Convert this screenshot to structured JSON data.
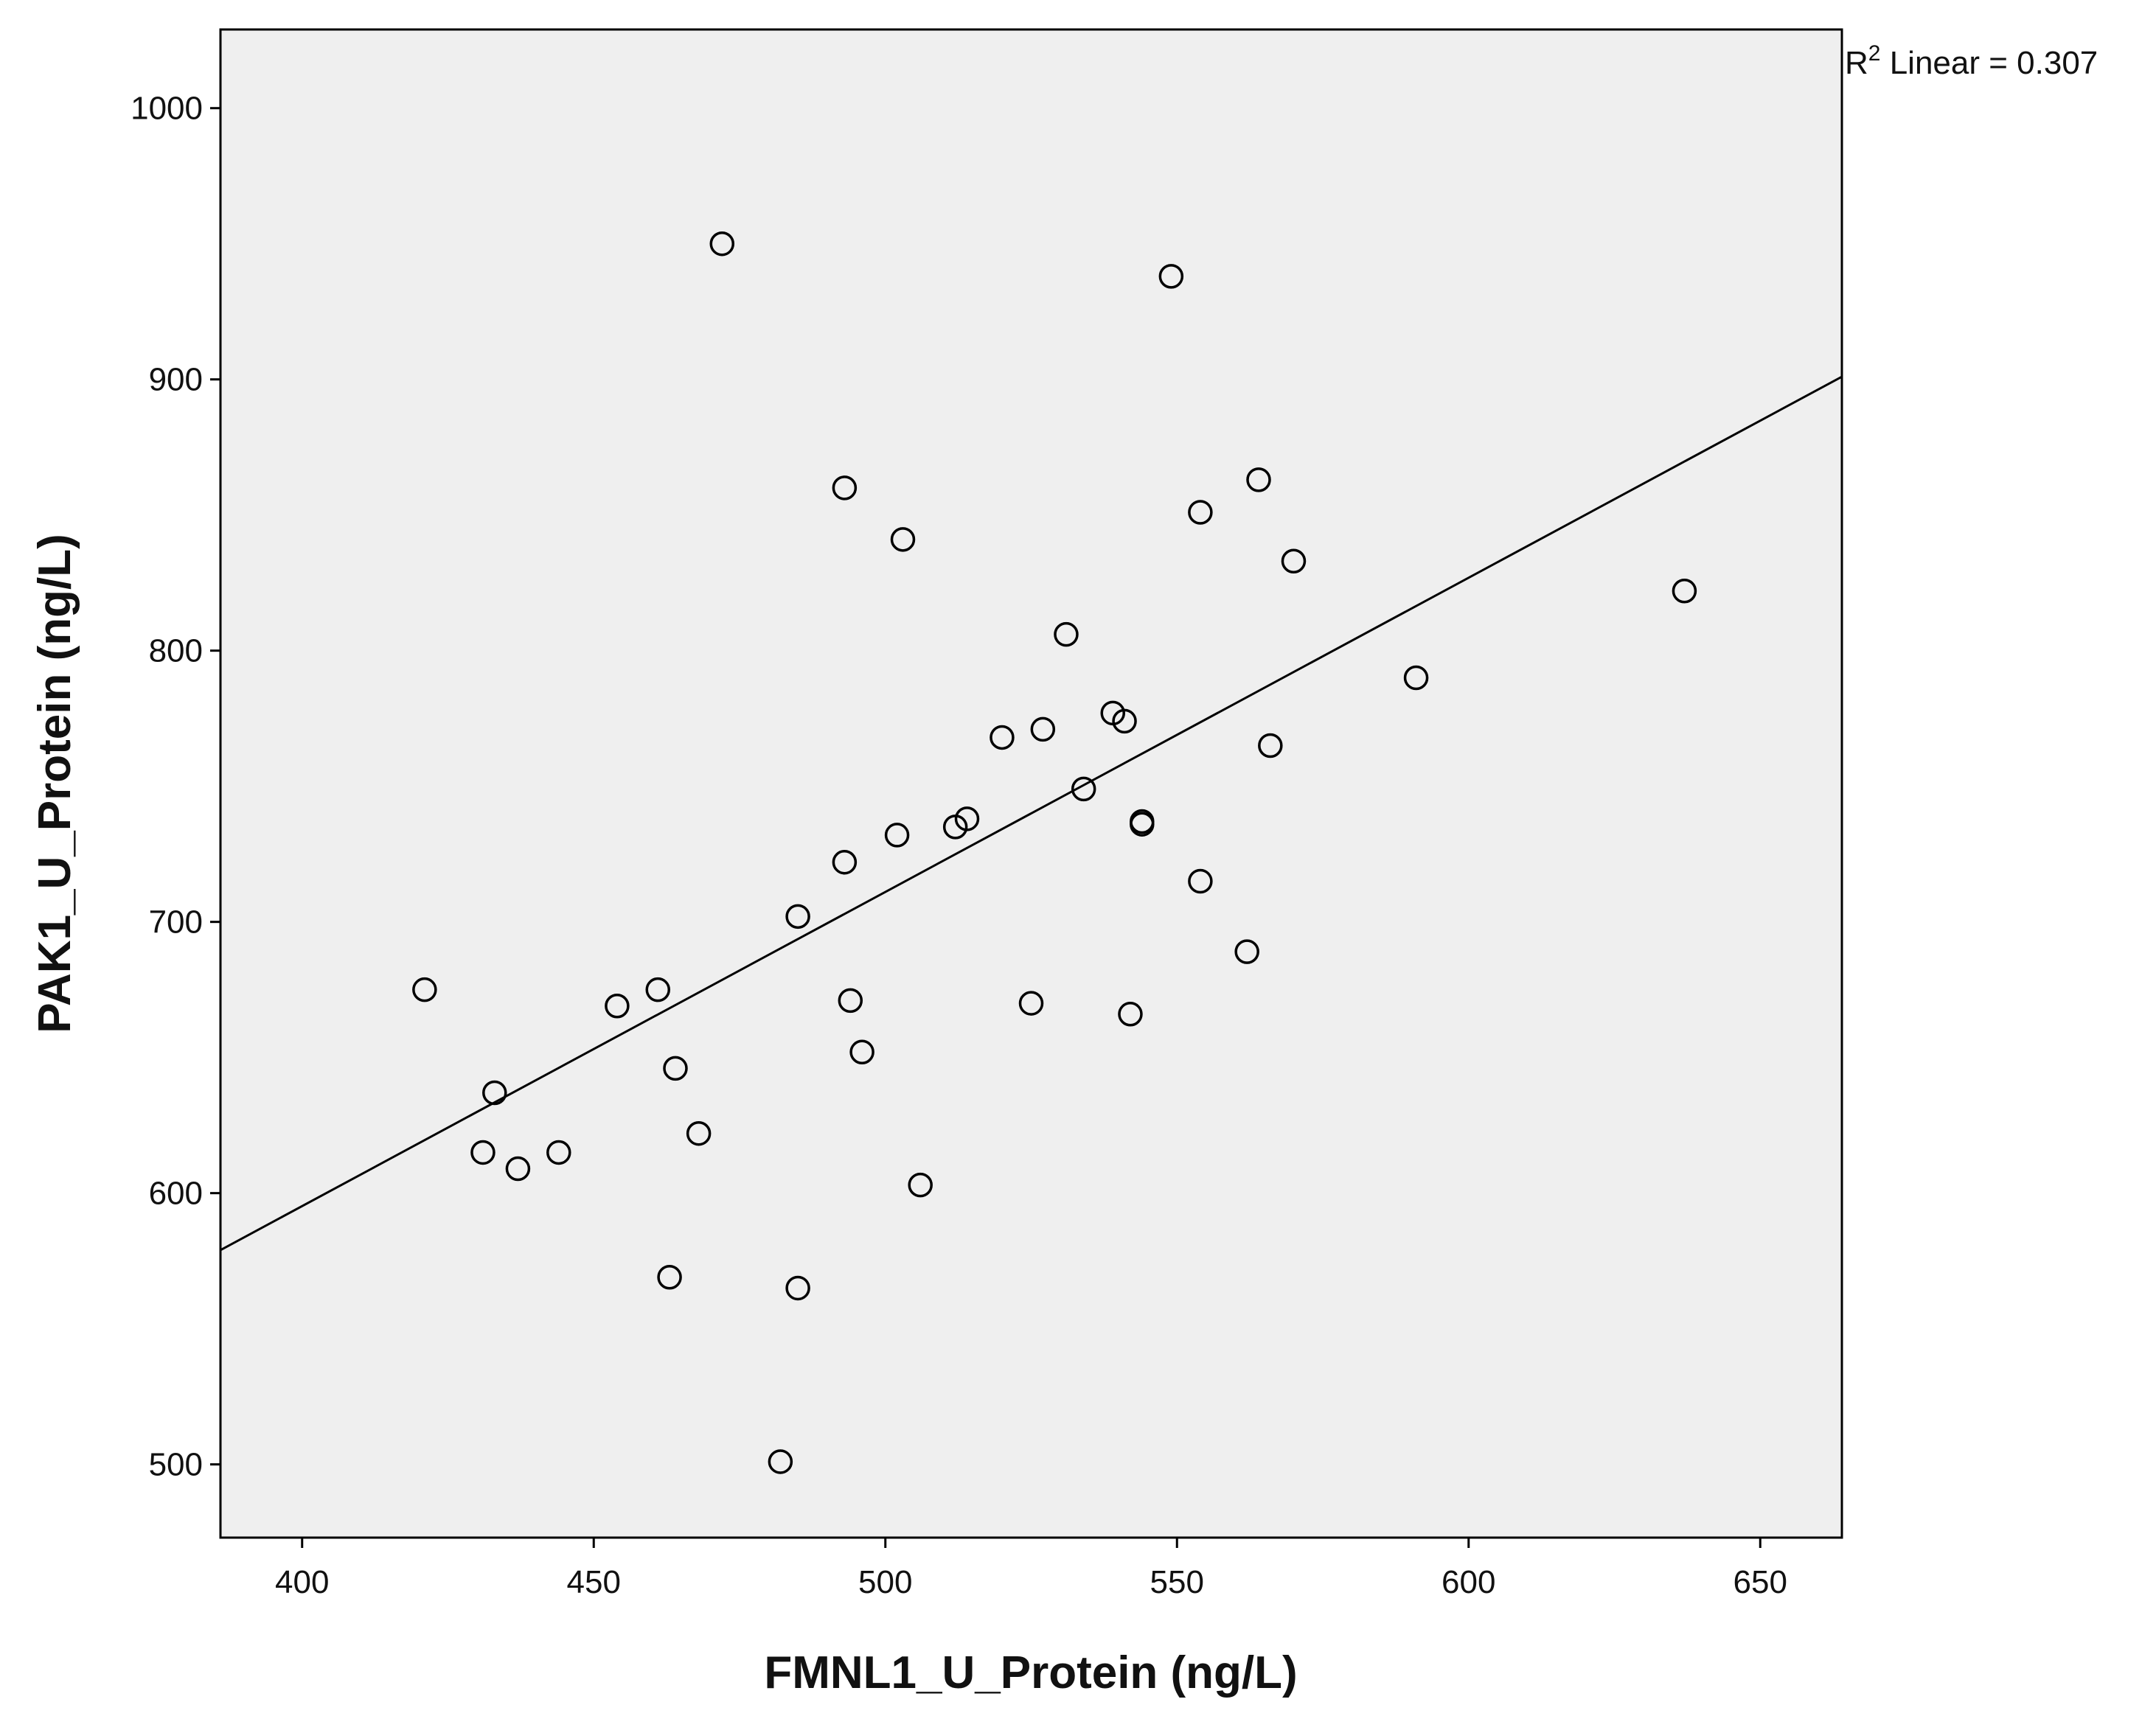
{
  "chart_data": {
    "type": "scatter",
    "title": "",
    "xlabel": "FMNL1_U_Protein (ng/L)",
    "ylabel": "PAK1_U_Protein (ng/L)",
    "xlim": [
      386,
      664
    ],
    "ylim": [
      473,
      1029
    ],
    "x_ticks": [
      400,
      450,
      500,
      550,
      600,
      650
    ],
    "y_ticks": [
      500,
      600,
      700,
      800,
      900,
      1000
    ],
    "x_tick_labels": [
      "400",
      "450",
      "500",
      "550",
      "600",
      "650"
    ],
    "y_tick_labels": [
      "500",
      "600",
      "700",
      "800",
      "900",
      "1000"
    ],
    "grid": false,
    "background_color": "#efefef",
    "points": [
      {
        "x": 421,
        "y": 675
      },
      {
        "x": 431,
        "y": 615
      },
      {
        "x": 433,
        "y": 637
      },
      {
        "x": 437,
        "y": 609
      },
      {
        "x": 444,
        "y": 615
      },
      {
        "x": 454,
        "y": 669
      },
      {
        "x": 461,
        "y": 675
      },
      {
        "x": 463,
        "y": 569
      },
      {
        "x": 464,
        "y": 646
      },
      {
        "x": 468,
        "y": 622
      },
      {
        "x": 472,
        "y": 950
      },
      {
        "x": 482,
        "y": 501
      },
      {
        "x": 485,
        "y": 702
      },
      {
        "x": 485,
        "y": 565
      },
      {
        "x": 493,
        "y": 860
      },
      {
        "x": 493,
        "y": 722
      },
      {
        "x": 494,
        "y": 671
      },
      {
        "x": 496,
        "y": 652
      },
      {
        "x": 502,
        "y": 732
      },
      {
        "x": 503,
        "y": 841
      },
      {
        "x": 506,
        "y": 603
      },
      {
        "x": 512,
        "y": 735
      },
      {
        "x": 514,
        "y": 738
      },
      {
        "x": 520,
        "y": 768
      },
      {
        "x": 525,
        "y": 670
      },
      {
        "x": 527,
        "y": 771
      },
      {
        "x": 531,
        "y": 806
      },
      {
        "x": 534,
        "y": 749
      },
      {
        "x": 539,
        "y": 777
      },
      {
        "x": 541,
        "y": 774
      },
      {
        "x": 542,
        "y": 666
      },
      {
        "x": 544,
        "y": 736
      },
      {
        "x": 544,
        "y": 737
      },
      {
        "x": 549,
        "y": 938
      },
      {
        "x": 554,
        "y": 851
      },
      {
        "x": 554,
        "y": 715
      },
      {
        "x": 562,
        "y": 689
      },
      {
        "x": 564,
        "y": 863
      },
      {
        "x": 566,
        "y": 765
      },
      {
        "x": 570,
        "y": 833
      },
      {
        "x": 591,
        "y": 790
      },
      {
        "x": 637,
        "y": 822
      }
    ],
    "fit_line": {
      "type": "linear",
      "x": [
        386,
        664
      ],
      "y": [
        579,
        901
      ]
    },
    "annotation": {
      "prefix": "R",
      "superscript": "2",
      "suffix": " Linear = 0.307",
      "position": "top-right"
    }
  }
}
